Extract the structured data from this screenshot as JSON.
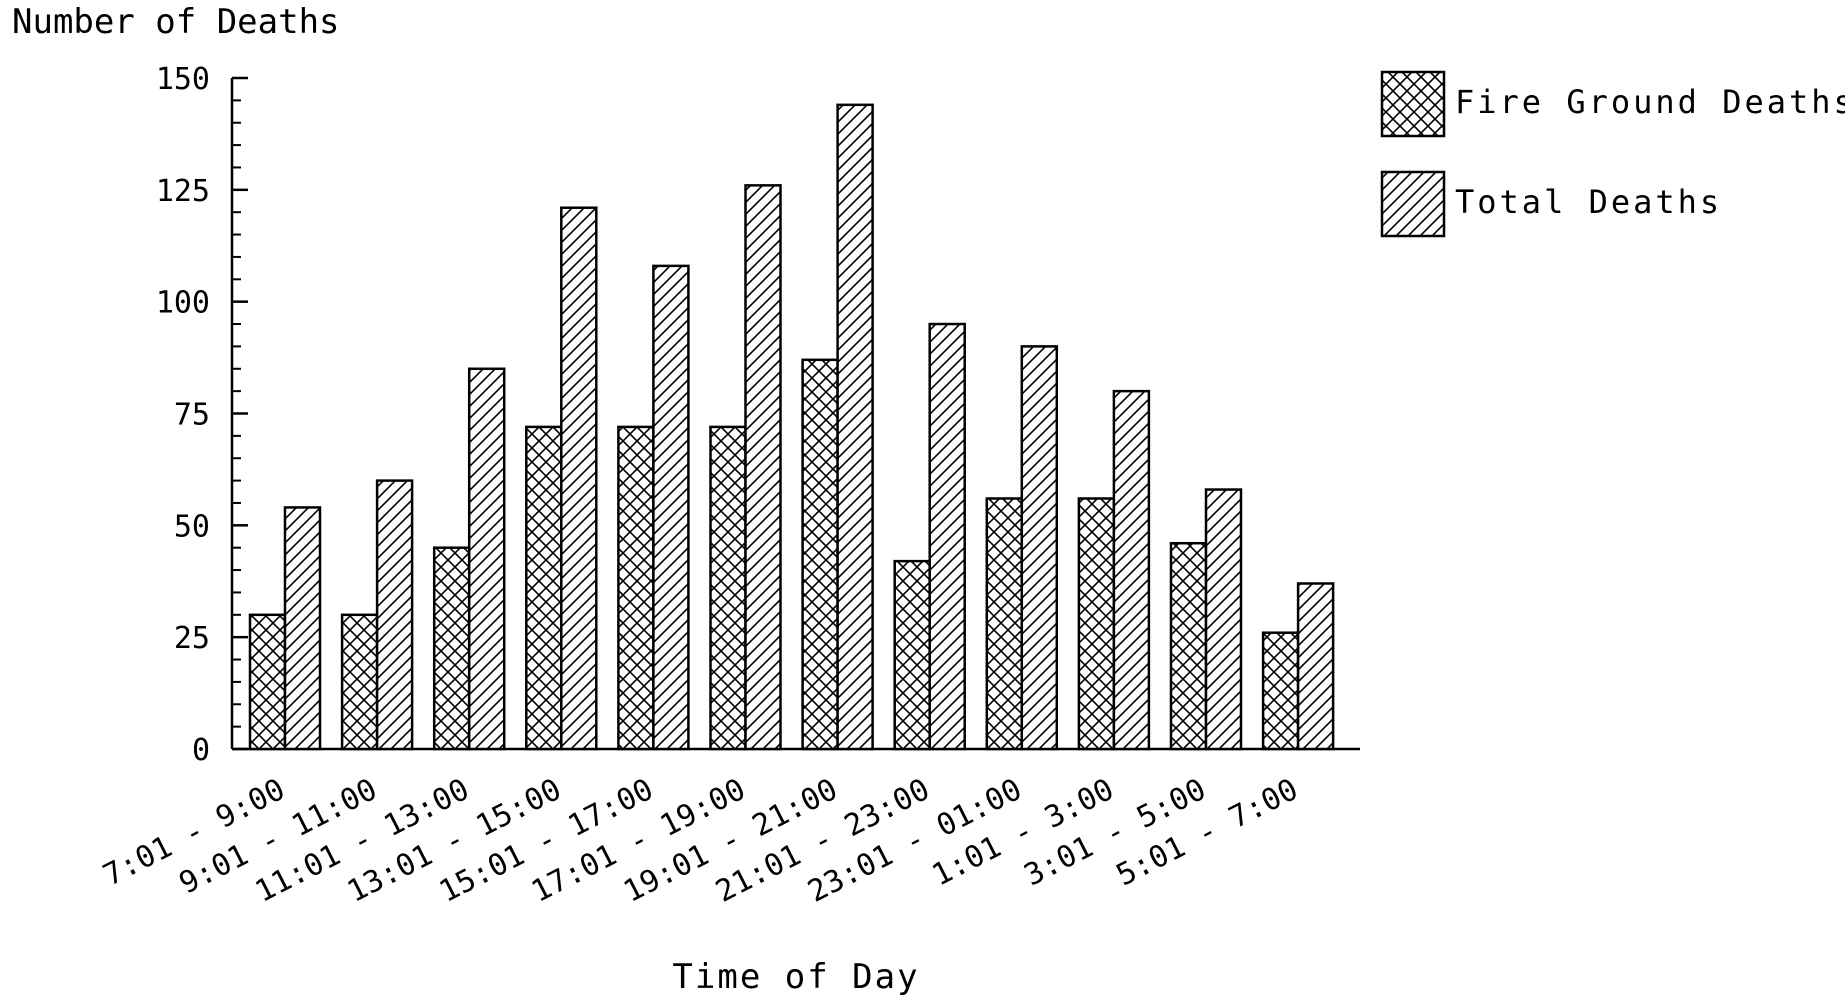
{
  "chart_data": {
    "type": "bar",
    "title": "",
    "ylabel": "Number of Deaths",
    "xlabel": "Time of Day",
    "ylim": [
      0,
      150
    ],
    "yticks": [
      "0",
      "25",
      "50",
      "75",
      "100",
      "125",
      "150"
    ],
    "categories": [
      "7:01 - 9:00",
      "9:01 - 11:00",
      "11:01 - 13:00",
      "13:01 - 15:00",
      "15:01 - 17:00",
      "17:01 - 19:00",
      "19:01 - 21:00",
      "21:01 - 23:00",
      "23:01 - 01:00",
      "1:01 - 3:00",
      "3:01 - 5:00",
      "5:01 - 7:00"
    ],
    "series": [
      {
        "name": "Fire Ground Deaths",
        "pattern": "crosshatch",
        "values": [
          30,
          30,
          45,
          72,
          72,
          72,
          87,
          42,
          56,
          56,
          46,
          26
        ]
      },
      {
        "name": "Total Deaths",
        "pattern": "diagonal-hatch",
        "values": [
          54,
          60,
          85,
          121,
          108,
          126,
          144,
          95,
          90,
          80,
          58,
          37
        ]
      }
    ],
    "legend_position": "top-right",
    "grid": false
  }
}
